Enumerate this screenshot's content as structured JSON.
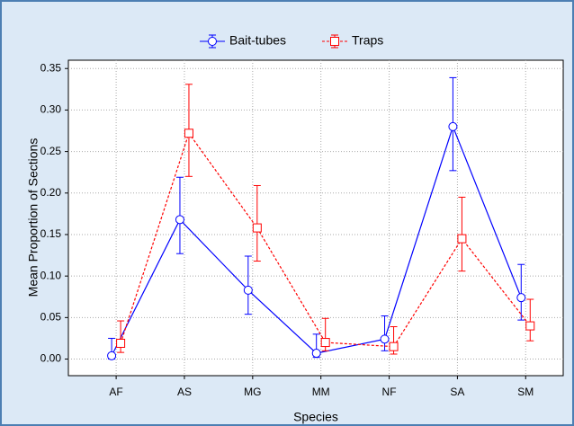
{
  "chart_data": {
    "type": "line",
    "x_label": "Species",
    "y_label": "Mean Proportion of Sections",
    "categories": [
      "AF",
      "AS",
      "MG",
      "MM",
      "NF",
      "SA",
      "SM"
    ],
    "series": [
      {
        "name": "Bait-tubes",
        "color": "#0000ff",
        "line_style": "solid",
        "marker": "circle",
        "values": [
          0.004,
          0.168,
          0.083,
          0.007,
          0.024,
          0.28,
          0.074
        ],
        "err_low": [
          0.0,
          0.127,
          0.054,
          0.002,
          0.01,
          0.227,
          0.047
        ],
        "err_high": [
          0.025,
          0.219,
          0.124,
          0.03,
          0.052,
          0.339,
          0.114
        ]
      },
      {
        "name": "Traps",
        "color": "#ff0000",
        "line_style": "dashed",
        "marker": "square",
        "values": [
          0.019,
          0.272,
          0.158,
          0.02,
          0.015,
          0.145,
          0.04
        ],
        "err_low": [
          0.008,
          0.22,
          0.118,
          0.01,
          0.006,
          0.106,
          0.022
        ],
        "err_high": [
          0.046,
          0.331,
          0.209,
          0.049,
          0.039,
          0.195,
          0.072
        ]
      }
    ],
    "ylim": [
      -0.02,
      0.36
    ],
    "yticks": [
      {
        "value": 0,
        "label": "0.00"
      },
      0.05,
      {
        "value": 0.1,
        "label": "0.10"
      },
      0.15,
      {
        "value": 0.2,
        "label": "0.20"
      },
      0.25,
      {
        "value": 0.3,
        "label": "0.30"
      },
      0.35
    ],
    "grid": true,
    "legend": "top"
  }
}
